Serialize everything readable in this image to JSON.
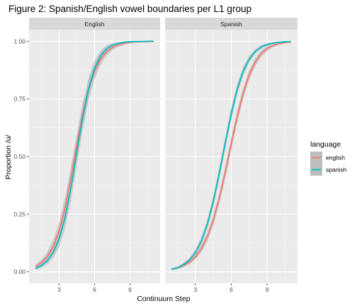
{
  "chart_data": {
    "type": "line",
    "title": "Figure 2: Spanish/English vowel boundaries per L1 group",
    "xlabel": "Continuum Step",
    "ylabel": "Proportion /u/",
    "xlim": [
      1,
      11
    ],
    "ylim": [
      0,
      1
    ],
    "x_ticks": [
      3,
      6,
      9
    ],
    "y_ticks": [
      0,
      0.25,
      0.5,
      0.75,
      1
    ],
    "y_tick_labels": [
      "0.00",
      "0.25",
      "0.50",
      "0.75",
      "1.00"
    ],
    "grid": true,
    "ribbon_color": "#bdbdbd",
    "legend": {
      "title": "language",
      "position": "right",
      "entries": [
        {
          "label": "english",
          "color": "#F8766D"
        },
        {
          "label": "spanish",
          "color": "#00BFC4"
        }
      ]
    },
    "x": [
      1,
      1.5,
      2,
      2.5,
      3,
      3.5,
      4,
      4.5,
      5,
      5.5,
      6,
      6.5,
      7,
      7.5,
      8,
      8.5,
      9,
      9.5,
      10,
      10.5,
      11
    ],
    "panels": [
      {
        "strip": "English",
        "series": [
          {
            "name": "english",
            "values": [
              0.023,
              0.039,
              0.066,
              0.109,
              0.177,
              0.276,
              0.407,
              0.55,
              0.685,
              0.794,
              0.871,
              0.922,
              0.954,
              0.973,
              0.984,
              0.991,
              0.995,
              0.997,
              0.998,
              0.999,
              0.999
            ],
            "lower": [
              0.013,
              0.025,
              0.045,
              0.08,
              0.138,
              0.229,
              0.357,
              0.5,
              0.636,
              0.752,
              0.838,
              0.898,
              0.937,
              0.961,
              0.976,
              0.985,
              0.991,
              0.994,
              0.996,
              0.997,
              0.998
            ],
            "upper": [
              0.033,
              0.053,
              0.087,
              0.138,
              0.216,
              0.323,
              0.457,
              0.6,
              0.734,
              0.836,
              0.904,
              0.946,
              0.971,
              0.985,
              0.992,
              0.997,
              0.999,
              1.0,
              1.0,
              1.0,
              1.0
            ]
          },
          {
            "name": "spanish",
            "values": [
              0.015,
              0.027,
              0.048,
              0.084,
              0.143,
              0.235,
              0.365,
              0.52,
              0.671,
              0.795,
              0.882,
              0.936,
              0.967,
              0.983,
              0.991,
              0.996,
              0.998,
              0.999,
              0.999,
              1.0,
              1.0
            ],
            "lower": [
              0.009,
              0.017,
              0.032,
              0.06,
              0.108,
              0.189,
              0.31,
              0.462,
              0.616,
              0.749,
              0.848,
              0.913,
              0.952,
              0.974,
              0.986,
              0.992,
              0.995,
              0.997,
              0.998,
              0.999,
              0.999
            ],
            "upper": [
              0.021,
              0.037,
              0.064,
              0.108,
              0.178,
              0.281,
              0.42,
              0.578,
              0.726,
              0.841,
              0.916,
              0.959,
              0.982,
              0.992,
              0.996,
              0.999,
              1.0,
              1.0,
              1.0,
              1.0,
              1.0
            ]
          }
        ]
      },
      {
        "strip": "Spanish",
        "series": [
          {
            "name": "english",
            "values": [
              0.011,
              0.017,
              0.027,
              0.042,
              0.066,
              0.101,
              0.153,
              0.225,
              0.32,
              0.433,
              0.556,
              0.674,
              0.775,
              0.854,
              0.909,
              0.946,
              0.969,
              0.982,
              0.99,
              0.994,
              0.997
            ],
            "lower": [
              0.007,
              0.012,
              0.02,
              0.033,
              0.054,
              0.086,
              0.134,
              0.202,
              0.294,
              0.405,
              0.527,
              0.646,
              0.75,
              0.832,
              0.891,
              0.932,
              0.958,
              0.974,
              0.984,
              0.99,
              0.993
            ],
            "upper": [
              0.015,
              0.022,
              0.034,
              0.051,
              0.078,
              0.116,
              0.172,
              0.248,
              0.346,
              0.461,
              0.585,
              0.702,
              0.8,
              0.876,
              0.927,
              0.96,
              0.98,
              0.99,
              0.996,
              0.998,
              1.0
            ]
          },
          {
            "name": "spanish",
            "values": [
              0.011,
              0.018,
              0.031,
              0.051,
              0.084,
              0.134,
              0.207,
              0.306,
              0.428,
              0.56,
              0.686,
              0.792,
              0.87,
              0.922,
              0.955,
              0.975,
              0.986,
              0.992,
              0.996,
              0.998,
              0.999
            ],
            "lower": [
              0.007,
              0.013,
              0.023,
              0.041,
              0.07,
              0.116,
              0.185,
              0.28,
              0.4,
              0.531,
              0.658,
              0.767,
              0.85,
              0.907,
              0.944,
              0.967,
              0.98,
              0.988,
              0.993,
              0.996,
              0.997
            ],
            "upper": [
              0.015,
              0.023,
              0.039,
              0.061,
              0.098,
              0.152,
              0.229,
              0.332,
              0.456,
              0.589,
              0.714,
              0.817,
              0.89,
              0.937,
              0.966,
              0.983,
              0.992,
              0.996,
              0.999,
              1.0,
              1.0
            ]
          }
        ]
      }
    ]
  }
}
